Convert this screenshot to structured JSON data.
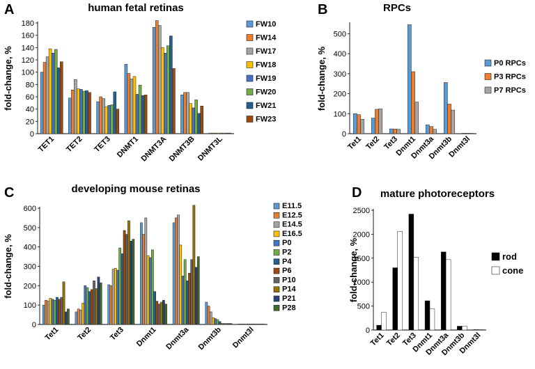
{
  "chart_data": [
    {
      "id": "A",
      "panel_label": "A",
      "type": "bar",
      "title": "human fetal retinas",
      "ylabel": "fold-change, %",
      "xlabel": "",
      "ylim": [
        0,
        180
      ],
      "yticks": [
        0,
        20,
        40,
        60,
        80,
        100,
        120,
        140,
        160,
        180
      ],
      "legend_position": "right",
      "categories": [
        "TET1",
        "TET2",
        "TET3",
        "DNMT1",
        "DNMT3A",
        "DNMT3B",
        "DNMT3L"
      ],
      "series": [
        {
          "name": "FW10",
          "color": "#5B9BD5",
          "values": [
            100,
            58,
            52,
            113,
            173,
            63,
            1
          ]
        },
        {
          "name": "FW14",
          "color": "#ED7D31",
          "values": [
            116,
            71,
            60,
            98,
            184,
            67,
            1
          ]
        },
        {
          "name": "FW17",
          "color": "#A5A5A5",
          "values": [
            125,
            88,
            57,
            89,
            176,
            67,
            1
          ]
        },
        {
          "name": "FW18",
          "color": "#FFC000",
          "values": [
            138,
            73,
            44,
            93,
            140,
            49,
            1
          ]
        },
        {
          "name": "FW19",
          "color": "#4472C4",
          "values": [
            131,
            72,
            46,
            64,
            131,
            42,
            1
          ]
        },
        {
          "name": "FW20",
          "color": "#70AD47",
          "values": [
            137,
            69,
            47,
            79,
            143,
            55,
            1
          ]
        },
        {
          "name": "FW21",
          "color": "#255E91",
          "values": [
            107,
            70,
            68,
            62,
            159,
            33,
            1
          ]
        },
        {
          "name": "FW23",
          "color": "#9E480E",
          "values": [
            117,
            67,
            40,
            63,
            106,
            45,
            1
          ]
        }
      ]
    },
    {
      "id": "B",
      "panel_label": "B",
      "type": "bar",
      "title": "RPCs",
      "ylabel": "fold-change, %",
      "xlabel": "",
      "ylim": [
        0,
        550
      ],
      "yticks": [
        0,
        100,
        200,
        300,
        400,
        500
      ],
      "legend_position": "right",
      "categories": [
        "Tet1",
        "Tet2",
        "Tet3",
        "Dnmt1",
        "Dnmt3a",
        "Dnmt3b",
        "Dnmt3l"
      ],
      "series": [
        {
          "name": "P0 RPCs",
          "color": "#5B9BD5",
          "values": [
            100,
            78,
            24,
            545,
            44,
            256,
            1
          ]
        },
        {
          "name": "P3 RPCs",
          "color": "#ED7D31",
          "values": [
            95,
            122,
            23,
            310,
            36,
            148,
            1
          ]
        },
        {
          "name": "P7 RPCs",
          "color": "#A5A5A5",
          "values": [
            72,
            124,
            22,
            158,
            22,
            118,
            1
          ]
        }
      ]
    },
    {
      "id": "C",
      "panel_label": "C",
      "type": "bar",
      "title": "developing mouse retinas",
      "ylabel": "fold-change, %",
      "xlabel": "",
      "ylim": [
        0,
        600
      ],
      "yticks": [
        0,
        100,
        200,
        300,
        400,
        500,
        600
      ],
      "legend_position": "right",
      "categories": [
        "Tet1",
        "Tet2",
        "Tet3",
        "Dnmt1",
        "Dnmt3a",
        "Dnmt3b",
        "Dnmt3l"
      ],
      "series": [
        {
          "name": "E11.5",
          "color": "#5B9BD5",
          "values": [
            100,
            65,
            205,
            525,
            525,
            115,
            1
          ]
        },
        {
          "name": "E12.5",
          "color": "#ED7D31",
          "values": [
            125,
            80,
            200,
            465,
            550,
            95,
            1
          ]
        },
        {
          "name": "E14.5",
          "color": "#A5A5A5",
          "values": [
            120,
            75,
            285,
            550,
            565,
            65,
            1
          ]
        },
        {
          "name": "E16.5",
          "color": "#FFC000",
          "values": [
            135,
            110,
            290,
            355,
            410,
            35,
            1
          ]
        },
        {
          "name": "P0",
          "color": "#4472C4",
          "values": [
            130,
            200,
            280,
            345,
            250,
            30,
            1
          ]
        },
        {
          "name": "P2",
          "color": "#70AD47",
          "values": [
            125,
            190,
            395,
            385,
            335,
            25,
            1
          ]
        },
        {
          "name": "P4",
          "color": "#255E91",
          "values": [
            140,
            170,
            365,
            170,
            225,
            15,
            1
          ]
        },
        {
          "name": "P6",
          "color": "#9E480E",
          "values": [
            130,
            180,
            485,
            120,
            265,
            5,
            1
          ]
        },
        {
          "name": "P10",
          "color": "#636363",
          "values": [
            140,
            225,
            465,
            105,
            335,
            5,
            1
          ]
        },
        {
          "name": "P14",
          "color": "#997300",
          "values": [
            220,
            185,
            535,
            115,
            615,
            5,
            1
          ]
        },
        {
          "name": "P21",
          "color": "#264478",
          "values": [
            65,
            245,
            430,
            125,
            295,
            5,
            1
          ]
        },
        {
          "name": "P28",
          "color": "#43682B",
          "values": [
            80,
            215,
            440,
            105,
            350,
            5,
            1
          ]
        }
      ]
    },
    {
      "id": "D",
      "panel_label": "D",
      "type": "bar",
      "title": "mature photoreceptors",
      "ylabel": "fold-change, %",
      "xlabel": "",
      "ylim": [
        0,
        2500
      ],
      "yticks": [
        0,
        500,
        1000,
        1500,
        2000,
        2500
      ],
      "legend_position": "right",
      "categories": [
        "Tet1",
        "Tet2",
        "Tet3",
        "Dnmt1",
        "Dnmt3a",
        "Dnmt3b",
        "Dnmt3l"
      ],
      "series": [
        {
          "name": "rod",
          "color": "#000000",
          "values": [
            100,
            1300,
            2420,
            610,
            1630,
            80,
            5
          ]
        },
        {
          "name": "cone",
          "color": "#ffffff",
          "values": [
            370,
            2060,
            1520,
            440,
            1470,
            80,
            5
          ]
        }
      ]
    }
  ]
}
